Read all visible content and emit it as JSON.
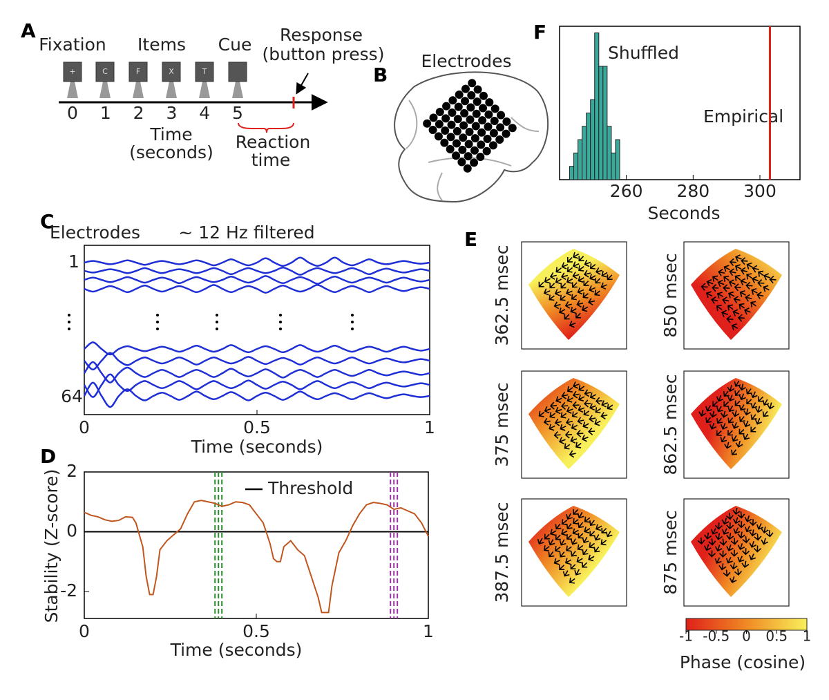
{
  "panel_labels": [
    "A",
    "B",
    "C",
    "D",
    "E",
    "F"
  ],
  "task": {
    "events": [
      "Fixation",
      "Items",
      "Cue"
    ],
    "response": [
      "Response",
      "(button press)"
    ],
    "screens": [
      "+",
      "C",
      "F",
      "X",
      "T"
    ],
    "ticks": [
      0,
      1,
      2,
      3,
      4,
      5
    ],
    "xlabel": [
      "Time",
      "(seconds)"
    ],
    "reaction": [
      "Reaction",
      "time"
    ]
  },
  "brain": {
    "label": "Electrodes"
  },
  "chart_data": [
    {
      "type": "traces",
      "ylabel": "Electrodes",
      "title": "~ 12 Hz filtered",
      "xlabel": "Time (seconds)",
      "xlim": [
        0,
        1
      ],
      "xticks": [
        0,
        0.5,
        1
      ],
      "row_labels": [
        1,
        64
      ],
      "x": [
        0,
        0.025,
        0.05,
        0.075,
        0.1,
        0.125,
        0.15,
        0.175,
        0.2,
        0.225,
        0.25,
        0.275,
        0.3,
        0.325,
        0.35,
        0.375,
        0.4,
        0.425,
        0.45,
        0.475,
        0.5,
        0.525,
        0.55,
        0.575,
        0.6,
        0.625,
        0.65,
        0.675,
        0.7,
        0.725,
        0.75,
        0.775,
        0.8,
        0.825,
        0.85,
        0.875,
        0.9,
        0.925,
        0.95,
        0.975,
        1
      ],
      "series": [
        {
          "color": "#1f2fd6",
          "values": [
            0,
            0.3,
            0,
            -0.3,
            0,
            0.4,
            0,
            -0.4,
            0,
            0.3,
            0,
            -0.3,
            0,
            0.4,
            0,
            -0.5,
            0,
            0.6,
            0,
            -0.5,
            0,
            0.8,
            0,
            -0.6,
            0,
            0.9,
            0,
            -0.6,
            0,
            0.9,
            0,
            -0.5,
            0,
            0.6,
            0,
            -0.3,
            0,
            0.3,
            0,
            -0.2,
            0
          ]
        },
        {
          "color": "#1f2fd6",
          "values": [
            0,
            -0.3,
            0,
            0.3,
            0,
            -0.4,
            0,
            0.5,
            0,
            -0.4,
            0,
            0.3,
            0,
            -0.4,
            0,
            0.5,
            0,
            -0.6,
            0,
            0.5,
            0,
            -0.4,
            0,
            0.6,
            0,
            -0.7,
            0,
            0.5,
            0,
            -0.4,
            0,
            0.5,
            0,
            -0.6,
            0,
            0.4,
            0,
            -0.3,
            0,
            0.3,
            0
          ]
        },
        {
          "color": "#1f2fd6",
          "values": [
            0,
            0.4,
            0,
            -0.4,
            0,
            0.5,
            0,
            -0.5,
            0,
            0.4,
            0,
            -0.6,
            0,
            0.5,
            0,
            -0.4,
            0,
            0.6,
            0,
            -0.5,
            0,
            0.7,
            0,
            -0.6,
            0,
            0.5,
            0,
            -0.7,
            0,
            0.6,
            0,
            -0.5,
            0,
            0.4,
            0,
            -0.5,
            0,
            0.4,
            0,
            -0.3,
            0
          ]
        },
        {
          "color": "#1f2fd6",
          "values": [
            0,
            -0.5,
            0,
            0.5,
            0,
            -0.6,
            0,
            0.6,
            0,
            -0.5,
            0,
            0.5,
            0,
            -0.6,
            0,
            0.7,
            0,
            -0.6,
            0,
            0.5,
            0,
            -0.7,
            0,
            0.6,
            0,
            -0.5,
            0,
            0.7,
            0,
            -0.6,
            0,
            0.5,
            0,
            -0.6,
            0,
            0.5,
            0,
            -0.4,
            0,
            0.3,
            0
          ]
        },
        {
          "color": "#1f2fd6",
          "values": [
            0,
            1.2,
            0,
            -1,
            0,
            0.5,
            0,
            -0.4,
            0,
            0.4,
            0,
            -0.5,
            0,
            0.6,
            0,
            -0.5,
            0,
            0.7,
            0,
            -0.6,
            0,
            0.5,
            0,
            -0.6,
            0,
            0.7,
            0,
            -0.5,
            0,
            0.6,
            0,
            -0.5,
            0,
            0.4,
            0,
            -0.5,
            0,
            0.4,
            0,
            -0.3,
            0
          ]
        },
        {
          "color": "#1f2fd6",
          "values": [
            0,
            -1.6,
            0,
            1.4,
            0,
            -0.8,
            0,
            0.6,
            0,
            -0.5,
            0,
            0.6,
            0,
            -0.7,
            0,
            0.6,
            0,
            -0.5,
            0,
            0.7,
            0,
            -0.6,
            0,
            0.5,
            0,
            -0.7,
            0,
            0.6,
            0,
            -0.5,
            0,
            0.6,
            0,
            -0.5,
            0,
            0.4,
            0,
            -0.3,
            0,
            0.3,
            0
          ]
        },
        {
          "color": "#1f2fd6",
          "values": [
            0,
            2,
            0,
            -1.7,
            0,
            1,
            0,
            -0.7,
            0,
            0.6,
            0,
            -0.7,
            0,
            0.6,
            0,
            -0.7,
            0,
            0.8,
            0,
            -0.6,
            0,
            0.7,
            0,
            -0.8,
            0,
            0.6,
            0,
            -0.7,
            0,
            0.6,
            0,
            -0.5,
            0,
            0.6,
            0,
            -0.4,
            0,
            0.3,
            0,
            -0.3,
            0
          ]
        },
        {
          "color": "#1f2fd6",
          "values": [
            0,
            -2.2,
            0,
            1.9,
            0,
            -1.1,
            0,
            0.7,
            0,
            -0.6,
            0,
            0.7,
            0,
            -0.8,
            0,
            0.7,
            0,
            -0.6,
            0,
            0.8,
            0,
            -0.7,
            0,
            0.6,
            0,
            -0.8,
            0,
            0.7,
            0,
            -0.6,
            0,
            0.5,
            0,
            -0.6,
            0,
            0.4,
            0,
            -0.3,
            0,
            0.3,
            0
          ]
        },
        {
          "color": "#1f2fd6",
          "values": [
            0,
            2.4,
            0,
            -2,
            0,
            1.2,
            0,
            -0.8,
            0,
            0.6,
            0,
            -0.7,
            0,
            0.8,
            0,
            -0.6,
            0,
            0.7,
            0,
            -0.8,
            0,
            0.6,
            0,
            -0.7,
            0,
            0.8,
            0,
            -0.6,
            0,
            0.5,
            0,
            -0.6,
            0,
            0.5,
            0,
            -0.4,
            0,
            0.3,
            0,
            -0.2,
            0
          ]
        }
      ]
    },
    {
      "type": "line",
      "ylabel": "Stability (Z-score)",
      "xlabel": "Time (seconds)",
      "xlim": [
        0,
        1
      ],
      "ylim": [
        -2.9,
        2
      ],
      "xticks": [
        0,
        0.5,
        1
      ],
      "yticks": [
        -2,
        0,
        2
      ],
      "x": [
        0,
        0.02,
        0.04,
        0.06,
        0.08,
        0.1,
        0.12,
        0.14,
        0.15,
        0.17,
        0.18,
        0.19,
        0.2,
        0.21,
        0.22,
        0.24,
        0.26,
        0.28,
        0.3,
        0.32,
        0.34,
        0.36,
        0.38,
        0.4,
        0.42,
        0.44,
        0.46,
        0.48,
        0.5,
        0.52,
        0.54,
        0.55,
        0.56,
        0.57,
        0.58,
        0.6,
        0.62,
        0.64,
        0.66,
        0.68,
        0.69,
        0.7,
        0.71,
        0.72,
        0.74,
        0.76,
        0.78,
        0.8,
        0.82,
        0.84,
        0.86,
        0.88,
        0.9,
        0.92,
        0.94,
        0.96,
        0.98,
        1
      ],
      "series": [
        {
          "color": "#c0561e",
          "values": [
            0.65,
            0.55,
            0.5,
            0.4,
            0.35,
            0.38,
            0.5,
            0.48,
            0.3,
            -0.5,
            -1.5,
            -2.1,
            -2.1,
            -1.5,
            -0.6,
            -0.3,
            -0.1,
            0.1,
            0.6,
            1,
            1.05,
            1,
            0.95,
            0.85,
            0.9,
            1,
            0.98,
            0.9,
            0.6,
            0.3,
            -0.4,
            -0.9,
            -1,
            -1,
            -0.5,
            -0.3,
            -0.6,
            -0.8,
            -1.5,
            -2.2,
            -2.7,
            -2.7,
            -2.7,
            -1.8,
            -0.7,
            -0.3,
            0.2,
            0.6,
            0.9,
            0.98,
            0.95,
            0.9,
            0.75,
            0.8,
            0.7,
            0.6,
            0.3,
            -0.15
          ]
        }
      ],
      "threshold": {
        "name": "Threshold",
        "value": 0,
        "color": "#000000"
      },
      "vlines": [
        {
          "color": "#2a8a2a",
          "x": [
            0.38,
            0.39,
            0.4
          ]
        },
        {
          "color": "#a030a8",
          "x": [
            0.89,
            0.9,
            0.91
          ]
        }
      ]
    },
    {
      "type": "histogram",
      "name": "Shuffled",
      "xlabel": "Seconds",
      "xlim": [
        240,
        312
      ],
      "ylim": [
        0,
        23
      ],
      "xticks": [
        260,
        280,
        300
      ],
      "bins": [
        243,
        244.25,
        245.5,
        246.75,
        248,
        249.25,
        250.5,
        251.75,
        253,
        254.25,
        255.5,
        256.75,
        258
      ],
      "counts": [
        2,
        4,
        6,
        8,
        10,
        12,
        22,
        17,
        17,
        8,
        4,
        6
      ],
      "color": "#3aa89a",
      "reference": {
        "name": "Empirical",
        "value": 303,
        "color": "#e0201a"
      }
    }
  ],
  "phase_maps": {
    "panels": [
      {
        "label": "362.5 msec"
      },
      {
        "label": "850 msec"
      },
      {
        "label": "375 msec"
      },
      {
        "label": "862.5 msec"
      },
      {
        "label": "387.5 msec"
      },
      {
        "label": "875 msec"
      }
    ],
    "colorbar": {
      "clim": [
        -1,
        1
      ],
      "ticks": [
        -1,
        -0.5,
        0,
        0.5,
        1
      ],
      "label": "Phase (cosine)",
      "colors": [
        "#e0201a",
        "#f08a24",
        "#f8f05a"
      ]
    }
  }
}
